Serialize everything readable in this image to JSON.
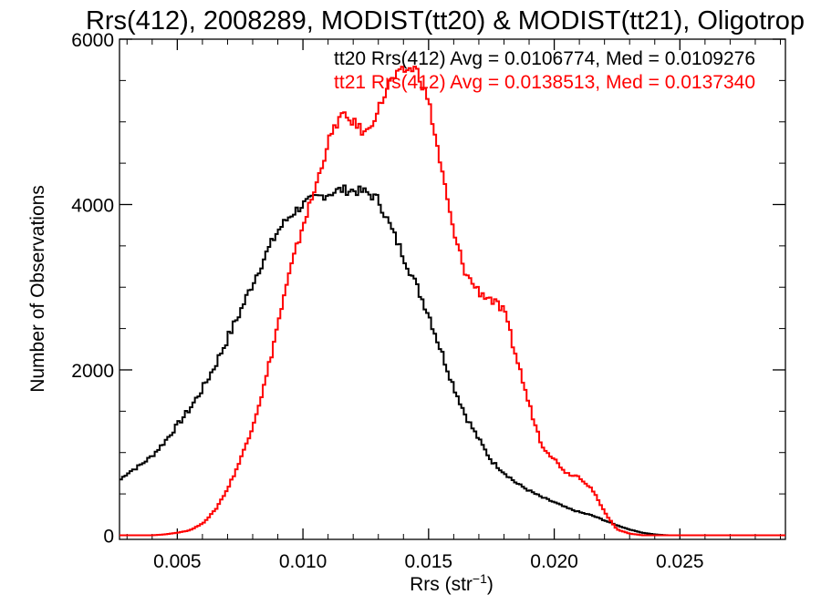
{
  "chart_data": {
    "type": "line",
    "title": "Rrs(412), 2008289, MODIST(tt20) & MODIST(tt21), Oligotrop",
    "xlabel_main": "Rrs (str",
    "xlabel_sup": "−1",
    "xlabel_end": ")",
    "ylabel": "Number of Observations",
    "xlim": [
      0.0027,
      0.0292
    ],
    "ylim": [
      -50,
      6000
    ],
    "x_ticks": [
      0.005,
      0.01,
      0.015,
      0.02,
      0.025
    ],
    "x_tick_labels": [
      "0.005",
      "0.010",
      "0.015",
      "0.020",
      "0.025"
    ],
    "y_ticks": [
      0,
      2000,
      4000,
      6000
    ],
    "y_tick_labels": [
      "0",
      "2000",
      "4000",
      "6000"
    ],
    "legend_position": "top-right",
    "series": [
      {
        "name": "tt20 Rrs(412) Avg = 0.0106774, Med = 0.0109276",
        "color": "#000000",
        "points": [
          [
            0.0027,
            660
          ],
          [
            0.003,
            750
          ],
          [
            0.0035,
            840
          ],
          [
            0.004,
            960
          ],
          [
            0.0045,
            1130
          ],
          [
            0.005,
            1330
          ],
          [
            0.0055,
            1530
          ],
          [
            0.006,
            1770
          ],
          [
            0.0065,
            2050
          ],
          [
            0.007,
            2380
          ],
          [
            0.0075,
            2700
          ],
          [
            0.008,
            3050
          ],
          [
            0.0085,
            3380
          ],
          [
            0.009,
            3680
          ],
          [
            0.0095,
            3870
          ],
          [
            0.01,
            4000
          ],
          [
            0.0105,
            4080
          ],
          [
            0.011,
            4130
          ],
          [
            0.0115,
            4180
          ],
          [
            0.012,
            4170
          ],
          [
            0.0125,
            4150
          ],
          [
            0.013,
            4060
          ],
          [
            0.0135,
            3720
          ],
          [
            0.014,
            3380
          ],
          [
            0.0145,
            3030
          ],
          [
            0.015,
            2680
          ],
          [
            0.0155,
            2230
          ],
          [
            0.016,
            1800
          ],
          [
            0.0165,
            1430
          ],
          [
            0.017,
            1160
          ],
          [
            0.0175,
            900
          ],
          [
            0.018,
            760
          ],
          [
            0.0185,
            630
          ],
          [
            0.019,
            540
          ],
          [
            0.0195,
            460
          ],
          [
            0.02,
            400
          ],
          [
            0.0205,
            330
          ],
          [
            0.021,
            280
          ],
          [
            0.0215,
            240
          ],
          [
            0.022,
            180
          ],
          [
            0.0225,
            120
          ],
          [
            0.023,
            70
          ],
          [
            0.0235,
            30
          ],
          [
            0.024,
            10
          ],
          [
            0.0245,
            0
          ],
          [
            0.0292,
            0
          ]
        ]
      },
      {
        "name": "tt21 Rrs(412) Avg = 0.0138513, Med = 0.0137340",
        "color": "#ff0000",
        "points": [
          [
            0.0027,
            0
          ],
          [
            0.004,
            0
          ],
          [
            0.0045,
            10
          ],
          [
            0.005,
            30
          ],
          [
            0.0055,
            60
          ],
          [
            0.006,
            140
          ],
          [
            0.0065,
            300
          ],
          [
            0.007,
            560
          ],
          [
            0.0075,
            900
          ],
          [
            0.008,
            1330
          ],
          [
            0.0085,
            1850
          ],
          [
            0.009,
            2550
          ],
          [
            0.0095,
            3200
          ],
          [
            0.01,
            3750
          ],
          [
            0.0105,
            4200
          ],
          [
            0.011,
            4750
          ],
          [
            0.0115,
            5080
          ],
          [
            0.012,
            5000
          ],
          [
            0.0125,
            4850
          ],
          [
            0.013,
            5150
          ],
          [
            0.0135,
            5500
          ],
          [
            0.014,
            5620
          ],
          [
            0.0145,
            5650
          ],
          [
            0.015,
            5250
          ],
          [
            0.0155,
            4450
          ],
          [
            0.016,
            3650
          ],
          [
            0.0165,
            3150
          ],
          [
            0.017,
            2950
          ],
          [
            0.0175,
            2850
          ],
          [
            0.018,
            2700
          ],
          [
            0.0185,
            2150
          ],
          [
            0.019,
            1580
          ],
          [
            0.0195,
            1100
          ],
          [
            0.02,
            920
          ],
          [
            0.0205,
            750
          ],
          [
            0.021,
            710
          ],
          [
            0.0215,
            560
          ],
          [
            0.022,
            280
          ],
          [
            0.0225,
            70
          ],
          [
            0.023,
            20
          ],
          [
            0.0235,
            0
          ],
          [
            0.0292,
            0
          ]
        ]
      }
    ]
  }
}
